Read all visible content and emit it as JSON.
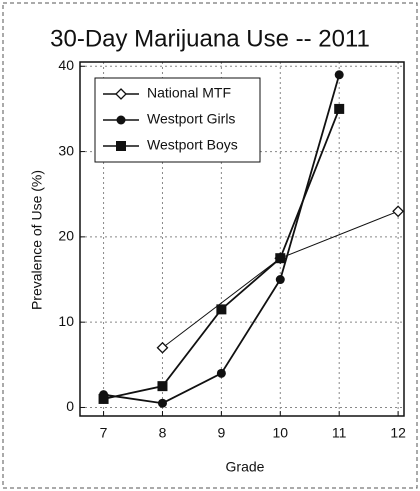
{
  "chart_data": {
    "type": "line",
    "title": "30-Day Marijuana Use -- 2011",
    "x_label": "Grade",
    "y_label": "Prevalence of Use (%)",
    "xlim": [
      6.6,
      12.1
    ],
    "xticks": [
      7,
      8,
      9,
      10,
      11,
      12
    ],
    "ylim": [
      -1,
      40.5
    ],
    "yticks": [
      0,
      10,
      20,
      30,
      40
    ],
    "grid": true,
    "legend": "upper left",
    "series": [
      {
        "name": "National MTF",
        "color": "#111111",
        "marker": "open-diamond",
        "x": [
          8,
          10,
          12
        ],
        "values": [
          7,
          17.5,
          23
        ]
      },
      {
        "name": "Westport Girls",
        "color": "#111111",
        "marker": "circle",
        "x": [
          7,
          8,
          9,
          10,
          11
        ],
        "values": [
          1.5,
          0.5,
          4,
          15,
          39
        ]
      },
      {
        "name": "Westport Boys",
        "color": "#111111",
        "marker": "square",
        "x": [
          7,
          8,
          9,
          10,
          11
        ],
        "values": [
          1,
          2.5,
          11.5,
          17.5,
          35
        ]
      }
    ]
  }
}
